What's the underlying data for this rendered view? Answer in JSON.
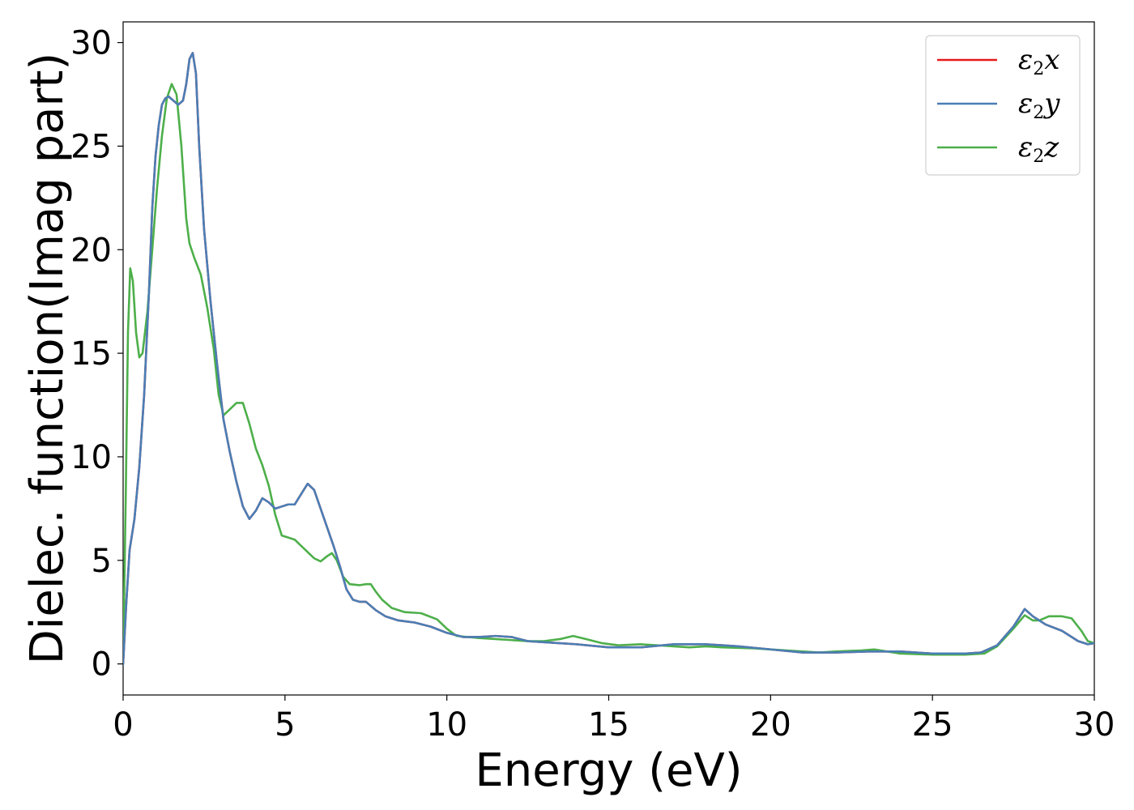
{
  "chart_data": {
    "type": "line",
    "title": "",
    "xlabel": "Energy (eV)",
    "ylabel": "Dielec. function(Imag part)",
    "xlim": [
      0,
      30
    ],
    "ylim": [
      -1.5,
      31
    ],
    "xticks": [
      0,
      5,
      10,
      15,
      20,
      25,
      30
    ],
    "yticks": [
      0,
      5,
      10,
      15,
      20,
      25,
      30
    ],
    "grid": false,
    "legend_position": "top-right",
    "series": [
      {
        "name": "ε₂x",
        "legend_base": "ε",
        "legend_sub": "2",
        "legend_var": "x",
        "color": "#e41a1c",
        "points": [
          [
            0,
            0
          ],
          [
            0.1,
            3
          ],
          [
            0.2,
            5.5
          ],
          [
            0.35,
            7
          ],
          [
            0.5,
            9.5
          ],
          [
            0.65,
            13
          ],
          [
            0.8,
            18
          ],
          [
            0.9,
            22
          ],
          [
            1.0,
            24.5
          ],
          [
            1.1,
            26
          ],
          [
            1.2,
            27
          ],
          [
            1.3,
            27.3
          ],
          [
            1.4,
            27.4
          ],
          [
            1.55,
            27.2
          ],
          [
            1.7,
            27
          ],
          [
            1.85,
            27.2
          ],
          [
            1.95,
            28
          ],
          [
            2.05,
            29.2
          ],
          [
            2.15,
            29.5
          ],
          [
            2.25,
            28.5
          ],
          [
            2.35,
            25
          ],
          [
            2.5,
            21
          ],
          [
            2.7,
            17.5
          ],
          [
            2.9,
            14.5
          ],
          [
            3.1,
            11.8
          ],
          [
            3.3,
            10.2
          ],
          [
            3.5,
            8.8
          ],
          [
            3.7,
            7.6
          ],
          [
            3.9,
            7.0
          ],
          [
            4.1,
            7.4
          ],
          [
            4.3,
            8.0
          ],
          [
            4.5,
            7.8
          ],
          [
            4.7,
            7.5
          ],
          [
            4.9,
            7.6
          ],
          [
            5.1,
            7.7
          ],
          [
            5.3,
            7.7
          ],
          [
            5.5,
            8.2
          ],
          [
            5.7,
            8.7
          ],
          [
            5.9,
            8.4
          ],
          [
            6.1,
            7.5
          ],
          [
            6.3,
            6.6
          ],
          [
            6.5,
            5.7
          ],
          [
            6.7,
            4.7
          ],
          [
            6.9,
            3.6
          ],
          [
            7.1,
            3.1
          ],
          [
            7.3,
            3.0
          ],
          [
            7.5,
            3.0
          ],
          [
            7.8,
            2.6
          ],
          [
            8.1,
            2.3
          ],
          [
            8.5,
            2.1
          ],
          [
            9.0,
            2.0
          ],
          [
            9.5,
            1.8
          ],
          [
            10.0,
            1.5
          ],
          [
            10.5,
            1.3
          ],
          [
            11.0,
            1.3
          ],
          [
            11.5,
            1.35
          ],
          [
            12.0,
            1.3
          ],
          [
            12.5,
            1.1
          ],
          [
            13.0,
            1.05
          ],
          [
            14.0,
            0.95
          ],
          [
            15.0,
            0.8
          ],
          [
            16.0,
            0.8
          ],
          [
            17.0,
            0.95
          ],
          [
            18.0,
            0.95
          ],
          [
            19.0,
            0.85
          ],
          [
            20.0,
            0.7
          ],
          [
            21.0,
            0.55
          ],
          [
            22.0,
            0.55
          ],
          [
            23.0,
            0.6
          ],
          [
            24.0,
            0.6
          ],
          [
            25.0,
            0.5
          ],
          [
            26.0,
            0.5
          ],
          [
            26.5,
            0.55
          ],
          [
            27.0,
            0.9
          ],
          [
            27.5,
            1.8
          ],
          [
            27.85,
            2.65
          ],
          [
            28.1,
            2.3
          ],
          [
            28.5,
            1.9
          ],
          [
            29.0,
            1.6
          ],
          [
            29.5,
            1.1
          ],
          [
            29.8,
            0.95
          ],
          [
            30.0,
            1.0
          ]
        ]
      },
      {
        "name": "ε₂y",
        "legend_base": "ε",
        "legend_sub": "2",
        "legend_var": "y",
        "color": "#4a7eb5",
        "points": [
          [
            0,
            0
          ],
          [
            0.1,
            3
          ],
          [
            0.2,
            5.5
          ],
          [
            0.35,
            7
          ],
          [
            0.5,
            9.5
          ],
          [
            0.65,
            13
          ],
          [
            0.8,
            18
          ],
          [
            0.9,
            22
          ],
          [
            1.0,
            24.5
          ],
          [
            1.1,
            26
          ],
          [
            1.2,
            27
          ],
          [
            1.3,
            27.3
          ],
          [
            1.4,
            27.4
          ],
          [
            1.55,
            27.2
          ],
          [
            1.7,
            27
          ],
          [
            1.85,
            27.2
          ],
          [
            1.95,
            28
          ],
          [
            2.05,
            29.2
          ],
          [
            2.15,
            29.5
          ],
          [
            2.25,
            28.5
          ],
          [
            2.35,
            25
          ],
          [
            2.5,
            21
          ],
          [
            2.7,
            17.5
          ],
          [
            2.9,
            14.5
          ],
          [
            3.1,
            11.8
          ],
          [
            3.3,
            10.2
          ],
          [
            3.5,
            8.8
          ],
          [
            3.7,
            7.6
          ],
          [
            3.9,
            7.0
          ],
          [
            4.1,
            7.4
          ],
          [
            4.3,
            8.0
          ],
          [
            4.5,
            7.8
          ],
          [
            4.7,
            7.5
          ],
          [
            4.9,
            7.6
          ],
          [
            5.1,
            7.7
          ],
          [
            5.3,
            7.7
          ],
          [
            5.5,
            8.2
          ],
          [
            5.7,
            8.7
          ],
          [
            5.9,
            8.4
          ],
          [
            6.1,
            7.5
          ],
          [
            6.3,
            6.6
          ],
          [
            6.5,
            5.7
          ],
          [
            6.7,
            4.7
          ],
          [
            6.9,
            3.6
          ],
          [
            7.1,
            3.1
          ],
          [
            7.3,
            3.0
          ],
          [
            7.5,
            3.0
          ],
          [
            7.8,
            2.6
          ],
          [
            8.1,
            2.3
          ],
          [
            8.5,
            2.1
          ],
          [
            9.0,
            2.0
          ],
          [
            9.5,
            1.8
          ],
          [
            10.0,
            1.5
          ],
          [
            10.5,
            1.3
          ],
          [
            11.0,
            1.3
          ],
          [
            11.5,
            1.35
          ],
          [
            12.0,
            1.3
          ],
          [
            12.5,
            1.1
          ],
          [
            13.0,
            1.05
          ],
          [
            14.0,
            0.95
          ],
          [
            15.0,
            0.8
          ],
          [
            16.0,
            0.8
          ],
          [
            17.0,
            0.95
          ],
          [
            18.0,
            0.95
          ],
          [
            19.0,
            0.85
          ],
          [
            20.0,
            0.7
          ],
          [
            21.0,
            0.55
          ],
          [
            22.0,
            0.55
          ],
          [
            23.0,
            0.6
          ],
          [
            24.0,
            0.6
          ],
          [
            25.0,
            0.5
          ],
          [
            26.0,
            0.5
          ],
          [
            26.5,
            0.55
          ],
          [
            27.0,
            0.9
          ],
          [
            27.5,
            1.8
          ],
          [
            27.85,
            2.65
          ],
          [
            28.1,
            2.3
          ],
          [
            28.5,
            1.9
          ],
          [
            29.0,
            1.6
          ],
          [
            29.5,
            1.1
          ],
          [
            29.8,
            0.95
          ],
          [
            30.0,
            1.0
          ]
        ]
      },
      {
        "name": "ε₂z",
        "legend_base": "ε",
        "legend_sub": "2",
        "legend_var": "z",
        "color": "#4daf4a",
        "points": [
          [
            0,
            0
          ],
          [
            0.08,
            8
          ],
          [
            0.15,
            16
          ],
          [
            0.22,
            19.1
          ],
          [
            0.3,
            18.5
          ],
          [
            0.4,
            16
          ],
          [
            0.5,
            14.8
          ],
          [
            0.6,
            15.0
          ],
          [
            0.75,
            17
          ],
          [
            0.9,
            20
          ],
          [
            1.05,
            23
          ],
          [
            1.2,
            25.5
          ],
          [
            1.35,
            27.3
          ],
          [
            1.5,
            28.0
          ],
          [
            1.65,
            27.5
          ],
          [
            1.8,
            25
          ],
          [
            1.95,
            21.5
          ],
          [
            2.05,
            20.3
          ],
          [
            2.2,
            19.6
          ],
          [
            2.4,
            18.8
          ],
          [
            2.6,
            17.2
          ],
          [
            2.8,
            15.2
          ],
          [
            2.95,
            13.0
          ],
          [
            3.1,
            12.0
          ],
          [
            3.3,
            12.3
          ],
          [
            3.5,
            12.6
          ],
          [
            3.7,
            12.6
          ],
          [
            3.9,
            11.6
          ],
          [
            4.1,
            10.4
          ],
          [
            4.3,
            9.6
          ],
          [
            4.5,
            8.6
          ],
          [
            4.7,
            7.2
          ],
          [
            4.9,
            6.2
          ],
          [
            5.1,
            6.1
          ],
          [
            5.3,
            6.0
          ],
          [
            5.5,
            5.7
          ],
          [
            5.7,
            5.4
          ],
          [
            5.9,
            5.1
          ],
          [
            6.1,
            4.95
          ],
          [
            6.3,
            5.2
          ],
          [
            6.45,
            5.35
          ],
          [
            6.6,
            5.0
          ],
          [
            6.8,
            4.2
          ],
          [
            7.0,
            3.85
          ],
          [
            7.3,
            3.8
          ],
          [
            7.5,
            3.85
          ],
          [
            7.65,
            3.85
          ],
          [
            7.8,
            3.5
          ],
          [
            8.0,
            3.1
          ],
          [
            8.3,
            2.7
          ],
          [
            8.7,
            2.5
          ],
          [
            9.2,
            2.45
          ],
          [
            9.7,
            2.15
          ],
          [
            10.0,
            1.7
          ],
          [
            10.3,
            1.35
          ],
          [
            11.0,
            1.25
          ],
          [
            11.5,
            1.2
          ],
          [
            12.0,
            1.15
          ],
          [
            12.5,
            1.1
          ],
          [
            13.0,
            1.1
          ],
          [
            13.5,
            1.2
          ],
          [
            13.9,
            1.35
          ],
          [
            14.3,
            1.2
          ],
          [
            14.8,
            1.0
          ],
          [
            15.3,
            0.9
          ],
          [
            16.0,
            0.95
          ],
          [
            16.5,
            0.9
          ],
          [
            17.0,
            0.85
          ],
          [
            17.5,
            0.8
          ],
          [
            18.0,
            0.85
          ],
          [
            18.5,
            0.8
          ],
          [
            19.5,
            0.75
          ],
          [
            20.5,
            0.65
          ],
          [
            21.5,
            0.55
          ],
          [
            22.0,
            0.6
          ],
          [
            22.8,
            0.65
          ],
          [
            23.2,
            0.7
          ],
          [
            23.6,
            0.6
          ],
          [
            24.0,
            0.5
          ],
          [
            25.0,
            0.45
          ],
          [
            26.0,
            0.45
          ],
          [
            26.6,
            0.5
          ],
          [
            27.0,
            0.85
          ],
          [
            27.5,
            1.7
          ],
          [
            27.85,
            2.35
          ],
          [
            28.1,
            2.1
          ],
          [
            28.3,
            2.1
          ],
          [
            28.6,
            2.3
          ],
          [
            29.0,
            2.3
          ],
          [
            29.3,
            2.2
          ],
          [
            29.6,
            1.6
          ],
          [
            29.8,
            1.1
          ],
          [
            30.0,
            1.0
          ]
        ]
      }
    ]
  }
}
